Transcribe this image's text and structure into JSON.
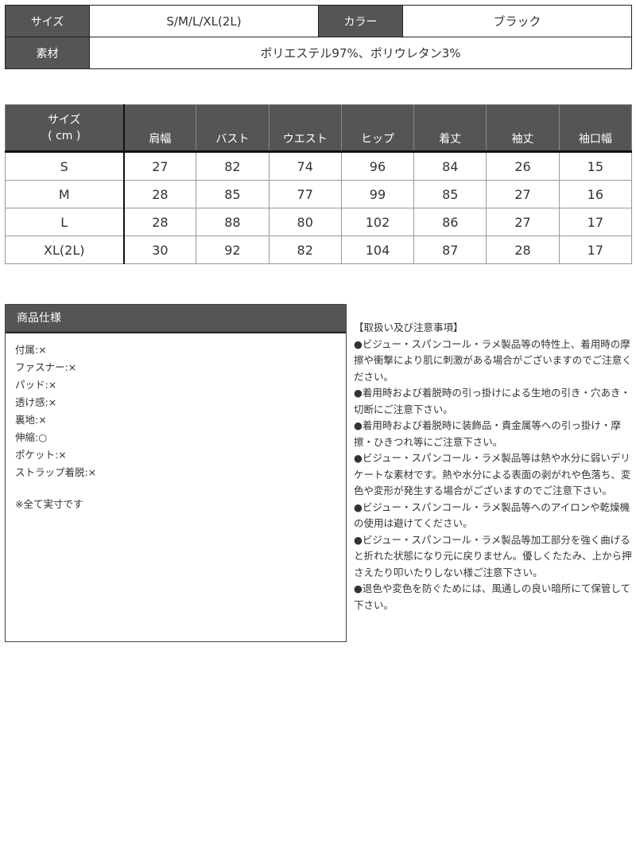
{
  "basic_info": {
    "size_label": "サイズ",
    "size_value": "S/M/L/XL(2L)",
    "color_label": "カラー",
    "color_value": "ブラック",
    "material_label": "素材",
    "material_value": "ポリエステル97%、ポリウレタン3%"
  },
  "size_table": {
    "corner_line1": "サイズ",
    "corner_line2": "( cm )",
    "columns": [
      "肩幅",
      "バスト",
      "ウエスト",
      "ヒップ",
      "着丈",
      "袖丈",
      "袖口幅"
    ],
    "rows": [
      {
        "size": "S",
        "values": [
          "27",
          "82",
          "74",
          "96",
          "84",
          "26",
          "15"
        ]
      },
      {
        "size": "M",
        "values": [
          "28",
          "85",
          "77",
          "99",
          "85",
          "27",
          "16"
        ]
      },
      {
        "size": "L",
        "values": [
          "28",
          "88",
          "80",
          "102",
          "86",
          "27",
          "17"
        ]
      },
      {
        "size": "XL(2L)",
        "values": [
          "30",
          "92",
          "82",
          "104",
          "87",
          "28",
          "17"
        ]
      }
    ]
  },
  "spec": {
    "title": "商品仕様",
    "items": [
      "付属:×",
      "ファスナー:×",
      "パッド:×",
      "透け感:×",
      "裏地:×",
      "伸縮:○",
      "ポケット:×",
      "ストラップ着脱:×"
    ],
    "note": "※全て実寸です"
  },
  "care": {
    "title": "【取扱い及び注意事項】",
    "items": [
      "●ビジュー・スパンコール・ラメ製品等の特性上、着用時の摩擦や衝撃により肌に刺激がある場合がございますのでご注意ください。",
      "●着用時および着脱時の引っ掛けによる生地の引き・穴あき・切断にご注意下さい。",
      "●着用時および着脱時に装飾品・貴金属等への引っ掛け・摩擦・ひきつれ等にご注意下さい。",
      "●ビジュー・スパンコール・ラメ製品等は熱や水分に弱いデリケートな素材です。熱や水分による表面の剥がれや色落ち、変色や変形が発生する場合がございますのでご注意下さい。",
      "●ビジュー・スパンコール・ラメ製品等へのアイロンや乾燥機の使用は避けてください。",
      "●ビジュー・スパンコール・ラメ製品等加工部分を強く曲げると折れた状態になり元に戻りません。優しくたたみ、上から押さえたり叩いたりしない様ご注意下さい。",
      "●退色や変色を防ぐためには、風通しの良い暗所にて保管して下さい。"
    ]
  },
  "colors": {
    "header_bg": "#555555",
    "header_text": "#ffffff",
    "text": "#333333"
  }
}
